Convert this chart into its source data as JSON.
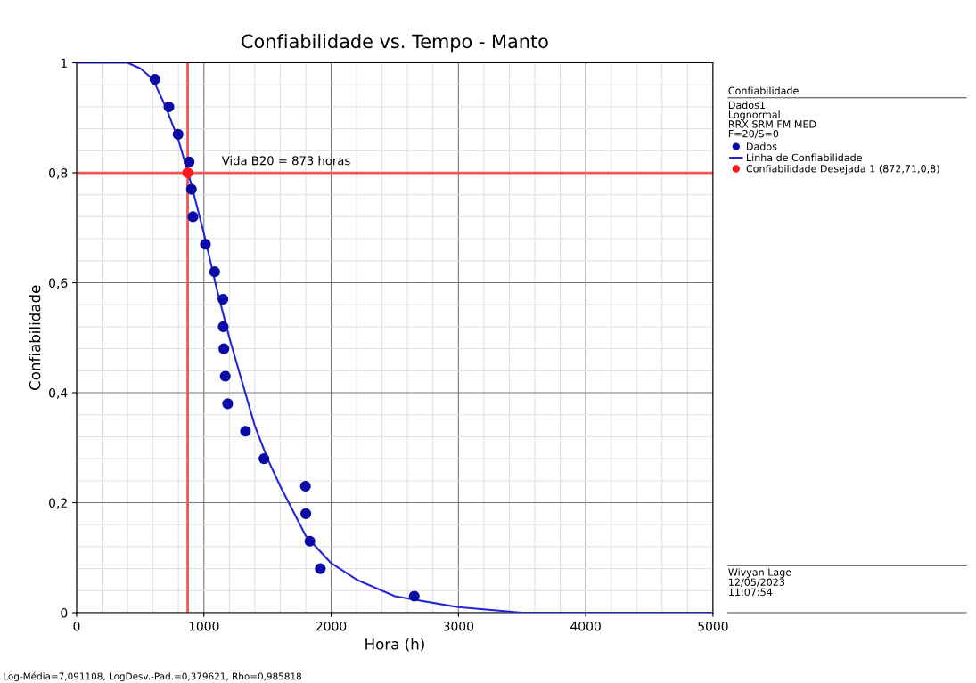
{
  "chart_data": {
    "type": "scatter",
    "title": "Confiabilidade vs. Tempo - Manto",
    "xlabel": "Hora (h)",
    "ylabel": "Confiabilidade",
    "xlim": [
      0,
      5000
    ],
    "xticks": [
      0,
      1000,
      2000,
      3000,
      4000,
      5000
    ],
    "ylim": [
      0,
      1
    ],
    "yticks": [
      {
        "value": 0,
        "label": "0"
      },
      {
        "value": 0.2,
        "label": "0,2"
      },
      {
        "value": 0.4,
        "label": "0,4"
      },
      {
        "value": 0.6,
        "label": "0,6"
      },
      {
        "value": 0.8,
        "label": "0,8"
      },
      {
        "value": 1,
        "label": "1"
      }
    ],
    "grid": true,
    "legend": "right",
    "legend_title": "Confiabilidade",
    "series": [
      {
        "name": "Dados",
        "marker": "circle",
        "color": "#0a0aa8",
        "x": [
          615,
          725,
          797,
          884,
          902,
          914,
          1012,
          1085,
          1150,
          1152,
          1157,
          1168,
          1187,
          1327,
          1472,
          1798,
          1801,
          1833,
          1915,
          2653
        ],
        "values": [
          0.97,
          0.92,
          0.87,
          0.82,
          0.77,
          0.72,
          0.67,
          0.62,
          0.57,
          0.52,
          0.48,
          0.43,
          0.38,
          0.33,
          0.28,
          0.23,
          0.18,
          0.13,
          0.08,
          0.03
        ]
      },
      {
        "name": "Linha de Confiabilidade",
        "type": "line",
        "marker": "none",
        "line_style": "solid",
        "color": "#2424d8",
        "x": [
          0,
          200,
          300,
          400,
          500,
          600,
          700,
          800,
          900,
          1000,
          1100,
          1200,
          1300,
          1400,
          1500,
          1600,
          1800,
          2000,
          2200,
          2500,
          3000,
          3500,
          4000,
          5000
        ],
        "values": [
          1,
          1,
          1,
          1,
          0.99,
          0.97,
          0.92,
          0.86,
          0.78,
          0.69,
          0.59,
          0.5,
          0.42,
          0.34,
          0.28,
          0.23,
          0.14,
          0.09,
          0.06,
          0.03,
          0.01,
          0,
          0,
          0
        ]
      },
      {
        "name": "Confiabilidade Desejada 1 (872,71,0,8)",
        "type": "scatter",
        "marker": "circle",
        "color": "#ff1a1a",
        "x": [
          872.71
        ],
        "values": [
          0.8
        ]
      }
    ],
    "ref_lines": [
      {
        "axis": "x",
        "value": 872.71,
        "color": "#ee5555"
      },
      {
        "axis": "y",
        "value": 0.8,
        "color": "#ee5555"
      }
    ],
    "annotations": [
      "Vida B20 = 873 horas",
      "Dados1",
      "Lognormal",
      "RRX SRM FM MED",
      "F=20/S=0",
      "Wivyan Lage",
      "12/05/2023",
      "11:07:54",
      "Log-Média=7,091108, LogDesv.-Pad.=0,379621, Rho=0,985818"
    ]
  }
}
